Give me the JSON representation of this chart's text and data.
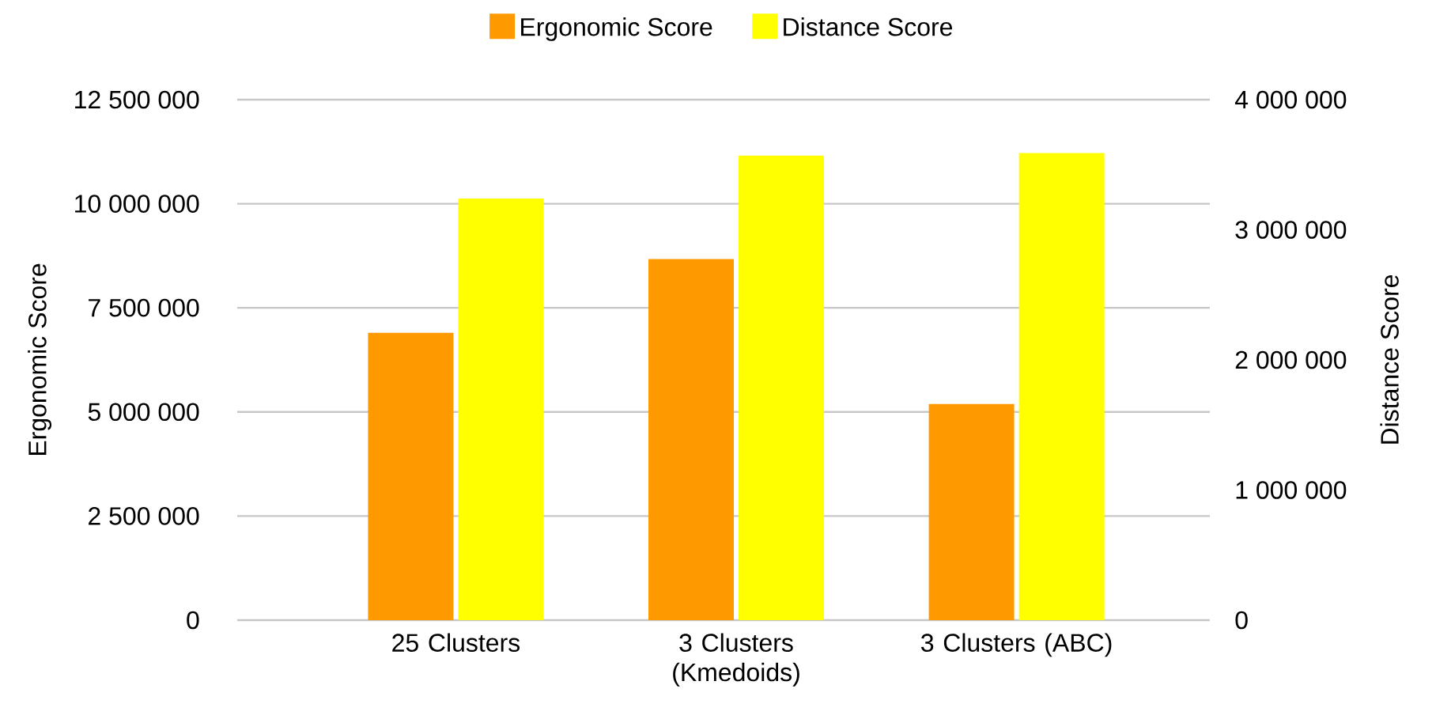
{
  "chart_data": {
    "type": "bar",
    "categories": [
      "25 Clusters",
      "3 Clusters (Kmedoids)",
      "3 Clusters (ABC)"
    ],
    "series": [
      {
        "name": "Ergonomic Score",
        "color": "#ff9900",
        "values": [
          6900000,
          8670000,
          5190000
        ]
      },
      {
        "name": "Distance Score",
        "color": "#ffff00",
        "values": [
          3240000,
          3570000,
          3590000
        ],
        "axis": "y2"
      }
    ],
    "ylabel": "Ergonomic Score",
    "y2label": "Distance Score",
    "ylim": [
      0,
      12500000
    ],
    "yticks": [
      {
        "value": 0,
        "label": "0"
      },
      {
        "value": 2500000,
        "label": "2 500 000"
      },
      {
        "value": 5000000,
        "label": "5 000 000"
      },
      {
        "value": 7500000,
        "label": "7 500 000"
      },
      {
        "value": 10000000,
        "label": "10 000 000"
      },
      {
        "value": 12500000,
        "label": "12 500 000"
      }
    ],
    "y2lim": [
      0,
      4000000
    ],
    "y2ticks": [
      {
        "value": 0,
        "label": "0"
      },
      {
        "value": 1000000,
        "label": "1 000 000"
      },
      {
        "value": 2000000,
        "label": "2 000 000"
      },
      {
        "value": 3000000,
        "label": "3 000 000"
      },
      {
        "value": 4000000,
        "label": "4 000 000"
      }
    ],
    "grid": "y",
    "legend": "top"
  }
}
